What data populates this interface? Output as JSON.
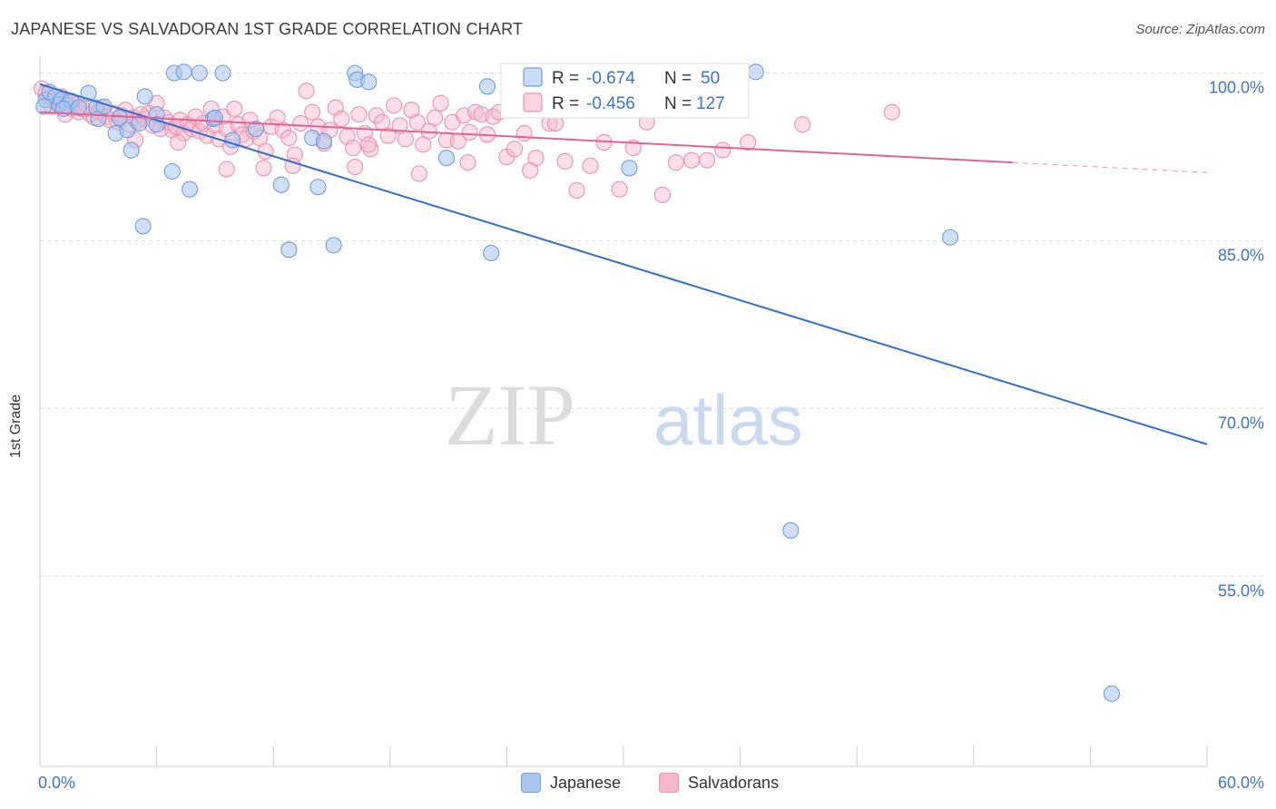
{
  "title": "JAPANESE VS SALVADORAN 1ST GRADE CORRELATION CHART",
  "source": "Source: ZipAtlas.com",
  "watermark": {
    "zip": "ZIP",
    "atlas": "atlas"
  },
  "legend_box": {
    "rows": [
      {
        "r_label": "R = ",
        "r_value": "-0.674",
        "n_label": "N = ",
        "n_value": "50"
      },
      {
        "r_label": "R = ",
        "r_value": "-0.456",
        "n_label": "N = ",
        "n_value": "127"
      }
    ]
  },
  "bottom_legend": [
    {
      "label": "Japanese"
    },
    {
      "label": "Salvadorans"
    }
  ],
  "colors": {
    "japanese_fill": "#a9c4ee",
    "japanese_stroke": "#6f9ee0",
    "japanese_line": "#2f6fd0",
    "salvadoran_fill": "#f6b8cb",
    "salvadoran_stroke": "#ee8fae",
    "salvadoran_line": "#e5628f",
    "tick_text": "#3a73c9",
    "grid": "#dddddd"
  },
  "chart_data": {
    "type": "scatter",
    "title": "JAPANESE VS SALVADORAN 1ST GRADE CORRELATION CHART",
    "xlabel": "",
    "ylabel": "1st Grade",
    "xlim": [
      0,
      60
    ],
    "ylim": [
      38,
      101.5
    ],
    "x_tick_labels": [
      {
        "value": 0,
        "label": "0.0%"
      },
      {
        "value": 60,
        "label": "60.0%"
      }
    ],
    "y_tick_labels": [
      {
        "value": 100,
        "label": "100.0%"
      },
      {
        "value": 85,
        "label": "85.0%"
      },
      {
        "value": 70,
        "label": "70.0%"
      },
      {
        "value": 55,
        "label": "55.0%"
      }
    ],
    "x_minor_ticks": [
      0,
      6,
      12,
      18,
      24,
      30,
      36,
      42,
      48,
      54,
      60
    ],
    "series": [
      {
        "name": "Japanese",
        "r": -0.674,
        "n": 50,
        "trend": {
          "x0": 0,
          "y0": 99.0,
          "x1": 60,
          "y1": 66.8
        },
        "points": [
          [
            0.3,
            97.6
          ],
          [
            0.5,
            98.3
          ],
          [
            0.8,
            97.9
          ],
          [
            1.0,
            97.2
          ],
          [
            1.1,
            97.6
          ],
          [
            1.4,
            97.1
          ],
          [
            1.6,
            97.5
          ],
          [
            2.0,
            96.9
          ],
          [
            2.5,
            98.2
          ],
          [
            2.9,
            96.9
          ],
          [
            3.0,
            95.9
          ],
          [
            3.3,
            97.0
          ],
          [
            3.9,
            94.6
          ],
          [
            4.1,
            96.0
          ],
          [
            4.5,
            94.9
          ],
          [
            5.4,
            97.9
          ],
          [
            5.1,
            95.5
          ],
          [
            4.7,
            93.1
          ],
          [
            6.0,
            96.3
          ],
          [
            6.0,
            95.4
          ],
          [
            6.8,
            91.2
          ],
          [
            5.3,
            86.3
          ],
          [
            6.9,
            100.0
          ],
          [
            7.4,
            100.1
          ],
          [
            8.2,
            100.0
          ],
          [
            9.4,
            100.0
          ],
          [
            7.7,
            89.6
          ],
          [
            8.9,
            95.9
          ],
          [
            9.0,
            96.0
          ],
          [
            9.9,
            94.0
          ],
          [
            11.1,
            95.0
          ],
          [
            12.4,
            90.0
          ],
          [
            12.8,
            84.2
          ],
          [
            14.0,
            94.2
          ],
          [
            14.3,
            89.8
          ],
          [
            14.6,
            93.9
          ],
          [
            15.1,
            84.6
          ],
          [
            16.2,
            100.0
          ],
          [
            16.3,
            99.4
          ],
          [
            16.9,
            99.2
          ],
          [
            20.9,
            92.4
          ],
          [
            23.0,
            98.8
          ],
          [
            23.2,
            83.9
          ],
          [
            30.3,
            91.5
          ],
          [
            36.8,
            100.1
          ],
          [
            46.8,
            85.3
          ],
          [
            38.6,
            59.1
          ],
          [
            55.1,
            44.5
          ],
          [
            0.2,
            97.0
          ],
          [
            1.2,
            96.8
          ]
        ]
      },
      {
        "name": "Salvadorans",
        "r": -0.456,
        "n": 127,
        "trend_solid": {
          "x0": 0,
          "y0": 96.5,
          "x1": 50.0,
          "y1": 92.0
        },
        "trend_dashed": {
          "x0": 50.0,
          "y0": 92.0,
          "x1": 60,
          "y1": 91.1
        },
        "points": [
          [
            0.1,
            98.6
          ],
          [
            0.3,
            98.2
          ],
          [
            0.5,
            97.8
          ],
          [
            0.7,
            97.5
          ],
          [
            0.9,
            97.2
          ],
          [
            1.1,
            97.9
          ],
          [
            1.4,
            97.4
          ],
          [
            1.6,
            96.8
          ],
          [
            1.8,
            97.2
          ],
          [
            2.0,
            96.5
          ],
          [
            2.2,
            96.8
          ],
          [
            2.4,
            97.1
          ],
          [
            2.6,
            96.3
          ],
          [
            2.8,
            96.0
          ],
          [
            3.0,
            96.5
          ],
          [
            3.2,
            96.9
          ],
          [
            3.4,
            96.1
          ],
          [
            3.6,
            95.8
          ],
          [
            3.8,
            96.4
          ],
          [
            4.0,
            95.6
          ],
          [
            4.2,
            96.2
          ],
          [
            4.4,
            96.7
          ],
          [
            4.6,
            95.4
          ],
          [
            4.8,
            96.0
          ],
          [
            5.0,
            95.7
          ],
          [
            5.2,
            96.3
          ],
          [
            5.4,
            95.9
          ],
          [
            5.6,
            96.4
          ],
          [
            5.8,
            95.3
          ],
          [
            6.0,
            97.3
          ],
          [
            6.2,
            95.0
          ],
          [
            6.4,
            96.0
          ],
          [
            6.6,
            95.6
          ],
          [
            6.8,
            94.9
          ],
          [
            7.0,
            95.2
          ],
          [
            7.2,
            95.8
          ],
          [
            7.4,
            94.6
          ],
          [
            7.6,
            95.4
          ],
          [
            7.8,
            95.0
          ],
          [
            8.0,
            96.1
          ],
          [
            8.2,
            94.8
          ],
          [
            8.4,
            95.5
          ],
          [
            8.6,
            94.4
          ],
          [
            8.8,
            96.8
          ],
          [
            9.0,
            95.3
          ],
          [
            9.2,
            94.1
          ],
          [
            9.4,
            96.1
          ],
          [
            9.6,
            95.0
          ],
          [
            9.8,
            93.4
          ],
          [
            10.0,
            96.8
          ],
          [
            10.2,
            95.4
          ],
          [
            10.4,
            94.5
          ],
          [
            10.6,
            94.1
          ],
          [
            10.8,
            95.8
          ],
          [
            11.0,
            94.8
          ],
          [
            11.3,
            94.2
          ],
          [
            11.6,
            93.0
          ],
          [
            11.9,
            95.2
          ],
          [
            12.2,
            96.0
          ],
          [
            12.5,
            94.9
          ],
          [
            12.8,
            94.2
          ],
          [
            13.1,
            92.7
          ],
          [
            13.4,
            95.5
          ],
          [
            13.7,
            98.4
          ],
          [
            14.0,
            96.5
          ],
          [
            14.3,
            95.2
          ],
          [
            14.6,
            93.7
          ],
          [
            14.9,
            94.9
          ],
          [
            15.2,
            96.9
          ],
          [
            15.5,
            95.9
          ],
          [
            15.8,
            94.3
          ],
          [
            16.1,
            93.3
          ],
          [
            16.4,
            96.3
          ],
          [
            16.7,
            94.6
          ],
          [
            17.0,
            93.2
          ],
          [
            17.3,
            96.2
          ],
          [
            17.6,
            95.6
          ],
          [
            17.9,
            94.4
          ],
          [
            18.2,
            97.1
          ],
          [
            18.5,
            95.3
          ],
          [
            18.8,
            94.1
          ],
          [
            19.1,
            96.7
          ],
          [
            19.4,
            95.6
          ],
          [
            19.7,
            93.6
          ],
          [
            20.0,
            94.8
          ],
          [
            20.3,
            96.0
          ],
          [
            20.6,
            97.3
          ],
          [
            20.9,
            94.0
          ],
          [
            21.2,
            95.6
          ],
          [
            21.5,
            93.9
          ],
          [
            21.8,
            96.2
          ],
          [
            22.1,
            94.7
          ],
          [
            22.4,
            96.5
          ],
          [
            22.7,
            96.3
          ],
          [
            23.0,
            94.5
          ],
          [
            23.3,
            96.1
          ],
          [
            23.6,
            96.5
          ],
          [
            24.0,
            92.5
          ],
          [
            24.4,
            93.2
          ],
          [
            24.9,
            94.6
          ],
          [
            25.5,
            92.4
          ],
          [
            26.2,
            95.5
          ],
          [
            27.0,
            92.1
          ],
          [
            27.6,
            89.5
          ],
          [
            28.3,
            91.7
          ],
          [
            29.0,
            93.8
          ],
          [
            29.8,
            89.6
          ],
          [
            30.5,
            93.3
          ],
          [
            31.2,
            95.6
          ],
          [
            32.0,
            89.1
          ],
          [
            32.7,
            92.0
          ],
          [
            33.5,
            92.2
          ],
          [
            34.3,
            92.2
          ],
          [
            35.1,
            93.1
          ],
          [
            36.4,
            93.8
          ],
          [
            9.6,
            91.4
          ],
          [
            11.5,
            91.5
          ],
          [
            13.0,
            91.7
          ],
          [
            16.2,
            91.6
          ],
          [
            19.5,
            91.0
          ],
          [
            25.2,
            91.3
          ],
          [
            26.5,
            95.5
          ],
          [
            39.2,
            95.4
          ],
          [
            43.8,
            96.5
          ],
          [
            0.6,
            97.0
          ],
          [
            1.3,
            96.3
          ],
          [
            4.9,
            94.0
          ],
          [
            7.1,
            93.8
          ],
          [
            16.9,
            93.6
          ],
          [
            22.0,
            92.0
          ]
        ]
      }
    ]
  }
}
